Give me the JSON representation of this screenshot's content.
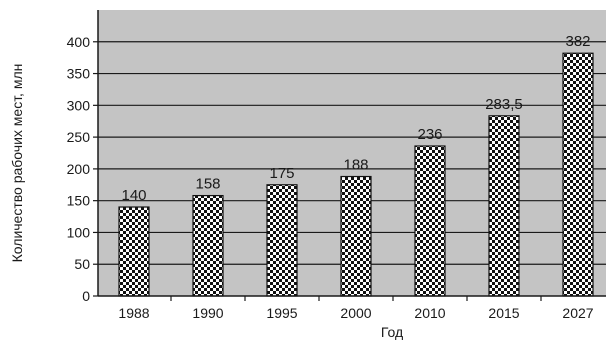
{
  "chart_data": {
    "type": "bar",
    "categories": [
      "1988",
      "1990",
      "1995",
      "2000",
      "2010",
      "2015",
      "2027"
    ],
    "values": [
      140,
      158,
      175,
      188,
      236,
      283.5,
      382
    ],
    "value_labels": [
      "140",
      "158",
      "175",
      "188",
      "236",
      "283,5",
      "382"
    ],
    "yticks": [
      "0",
      "50",
      "100",
      "150",
      "200",
      "250",
      "300",
      "350",
      "400"
    ],
    "ylim": [
      0,
      450
    ],
    "title": "",
    "xlabel": "Год",
    "ylabel": "Количество рабочих мест, млн",
    "grid": true,
    "legend": "none",
    "colors": {
      "plot_background": "#c4c4c4",
      "bar_fill_dark": "#111111",
      "bar_fill_light": "#ffffff",
      "gridline": "#1a1a1a"
    }
  }
}
